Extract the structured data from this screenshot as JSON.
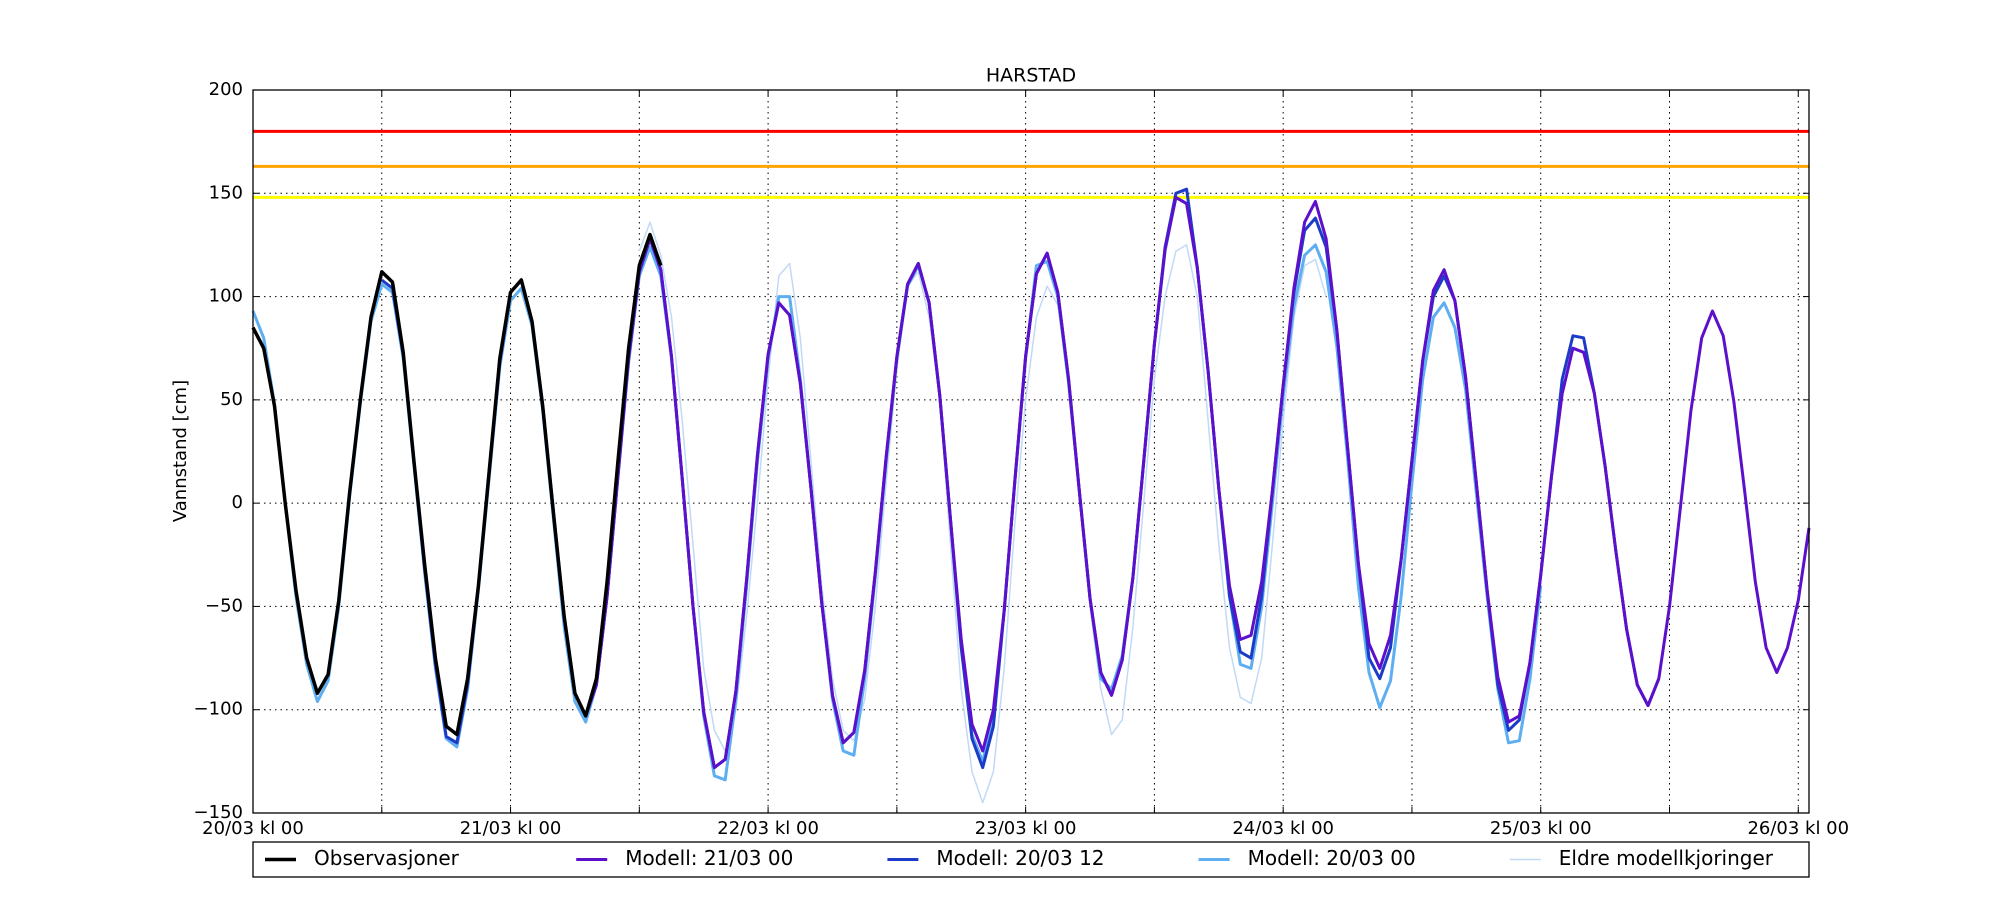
{
  "chart_data": {
    "type": "line",
    "title": "HARSTAD",
    "y_label": "Vannstand [cm]",
    "xlim": [
      0,
      145
    ],
    "ylim": [
      -150,
      200
    ],
    "xticks": [
      {
        "value": 0,
        "label": "20/03 kl 00"
      },
      {
        "value": 24,
        "label": "21/03 kl 00"
      },
      {
        "value": 48,
        "label": "22/03 kl 00"
      },
      {
        "value": 72,
        "label": "23/03 kl 00"
      },
      {
        "value": 96,
        "label": "24/03 kl 00"
      },
      {
        "value": 120,
        "label": "25/03 kl 00"
      },
      {
        "value": 144,
        "label": "26/03 kl 00"
      }
    ],
    "xminorticks": [
      12,
      36,
      60,
      84,
      108,
      132
    ],
    "yticks": [
      {
        "value": -150,
        "label": "−150"
      },
      {
        "value": -100,
        "label": "−100"
      },
      {
        "value": -50,
        "label": "−50"
      },
      0,
      50,
      100,
      150,
      200
    ],
    "grid": true,
    "legend": "bottom",
    "thresholds": [
      {
        "value": 180,
        "color": "#ff0000"
      },
      {
        "value": 163,
        "color": "#ffa500"
      },
      {
        "value": 148,
        "color": "#ffff00"
      }
    ],
    "x": [
      0,
      1,
      2,
      3,
      4,
      5,
      6,
      7,
      8,
      9,
      10,
      11,
      12,
      13,
      14,
      15,
      16,
      17,
      18,
      19,
      20,
      21,
      22,
      23,
      24,
      25,
      26,
      27,
      28,
      29,
      30,
      31,
      32,
      33,
      34,
      35,
      36,
      37,
      38,
      39,
      40,
      41,
      42,
      43,
      44,
      45,
      46,
      47,
      48,
      49,
      50,
      51,
      52,
      53,
      54,
      55,
      56,
      57,
      58,
      59,
      60,
      61,
      62,
      63,
      64,
      65,
      66,
      67,
      68,
      69,
      70,
      71,
      72,
      73,
      74,
      75,
      76,
      77,
      78,
      79,
      80,
      81,
      82,
      83,
      84,
      85,
      86,
      87,
      88,
      89,
      90,
      91,
      92,
      93,
      94,
      95,
      96,
      97,
      98,
      99,
      100,
      101,
      102,
      103,
      104,
      105,
      106,
      107,
      108,
      109,
      110,
      111,
      112,
      113,
      114,
      115,
      116,
      117,
      118,
      119,
      120,
      121,
      122,
      123,
      124,
      125,
      126,
      127,
      128,
      129,
      130,
      131,
      132,
      133,
      134,
      135,
      136,
      137,
      138,
      139,
      140,
      141,
      142,
      143,
      144,
      145
    ],
    "series": [
      {
        "name": "Observasjoner",
        "color": "#000000",
        "width": 3.5,
        "values": [
          85,
          75,
          47,
          0,
          -42,
          -75,
          -92,
          -83,
          -47,
          5,
          50,
          90,
          112,
          107,
          73,
          20,
          -30,
          -75,
          -108,
          -112,
          -85,
          -40,
          15,
          70,
          102,
          108,
          88,
          47,
          -5,
          -55,
          -92,
          -103,
          -85,
          -38,
          20,
          75,
          115,
          130,
          115,
          null,
          null,
          null,
          null,
          null,
          null,
          null,
          null,
          null,
          null,
          null,
          null,
          null,
          null,
          null,
          null,
          null,
          null,
          null,
          null,
          null,
          null,
          null,
          null,
          null,
          null,
          null,
          null,
          null,
          null,
          null,
          null,
          null,
          null,
          null,
          null,
          null,
          null,
          null,
          null,
          null,
          null,
          null,
          null,
          null,
          null,
          null,
          null,
          null,
          null,
          null,
          null,
          null,
          null,
          null,
          null,
          null,
          null,
          null,
          null,
          null,
          null,
          null,
          null,
          null,
          null,
          null,
          null,
          null,
          null,
          null,
          null,
          null,
          null,
          null,
          null,
          null,
          null,
          null,
          null,
          null,
          null,
          null,
          null,
          null,
          null,
          null,
          null,
          null,
          null,
          null,
          null,
          null,
          null,
          null,
          null,
          null,
          null,
          null,
          null,
          null,
          null,
          null,
          null,
          null,
          null,
          null
        ]
      },
      {
        "name": "Modell: 21/03 00",
        "color": "#5c10cc",
        "width": 3,
        "values": [
          null,
          null,
          null,
          null,
          null,
          null,
          null,
          null,
          null,
          null,
          null,
          null,
          null,
          null,
          null,
          null,
          null,
          null,
          null,
          null,
          null,
          null,
          null,
          null,
          102,
          108,
          88,
          47,
          -5,
          -55,
          -92,
          -103,
          -88,
          -45,
          13,
          70,
          112,
          128,
          113,
          71,
          12,
          -50,
          -101,
          -128,
          -124,
          -91,
          -37,
          23,
          72,
          97,
          91,
          58,
          7,
          -48,
          -93,
          -116,
          -111,
          -81,
          -33,
          22,
          71,
          106,
          116,
          97,
          52,
          -8,
          -66,
          -107,
          -120,
          -100,
          -52,
          11,
          71,
          111,
          121,
          102,
          60,
          6,
          -46,
          -82,
          -93,
          -76,
          -36,
          20,
          77,
          123,
          148,
          145,
          114,
          64,
          7,
          -40,
          -66,
          -64,
          -38,
          6,
          57,
          104,
          136,
          146,
          128,
          84,
          27,
          -29,
          -68,
          -80,
          -64,
          -27,
          21,
          69,
          103,
          113,
          98,
          61,
          10,
          -42,
          -84,
          -106,
          -103,
          -77,
          -35,
          13,
          53,
          75,
          73,
          53,
          18,
          -23,
          -61,
          -88,
          -98,
          -85,
          -50,
          -3,
          45,
          80,
          93,
          81,
          49,
          6,
          -38,
          -70,
          -82,
          -70,
          -47,
          -12
        ]
      },
      {
        "name": "Modell: 20/03 12",
        "color": "#1c3cc8",
        "width": 3,
        "values": [
          null,
          null,
          null,
          null,
          null,
          null,
          null,
          null,
          null,
          null,
          null,
          null,
          108,
          104,
          72,
          20,
          -32,
          -78,
          -113,
          -116,
          -88,
          -40,
          15,
          68,
          102,
          108,
          88,
          47,
          -5,
          -55,
          -92,
          -103,
          -88,
          -45,
          13,
          70,
          112,
          128,
          113,
          71,
          12,
          -50,
          -101,
          -128,
          -124,
          -91,
          -37,
          23,
          72,
          97,
          91,
          58,
          7,
          -48,
          -93,
          -116,
          -111,
          -81,
          -33,
          22,
          71,
          106,
          116,
          97,
          52,
          -8,
          -70,
          -114,
          -128,
          -108,
          -52,
          11,
          71,
          111,
          121,
          102,
          60,
          6,
          -46,
          -82,
          -93,
          -76,
          -36,
          20,
          77,
          124,
          150,
          152,
          114,
          64,
          7,
          -45,
          -72,
          -75,
          -45,
          6,
          57,
          102,
          132,
          138,
          124,
          84,
          27,
          -29,
          -75,
          -85,
          -70,
          -27,
          21,
          69,
          100,
          110,
          98,
          61,
          10,
          -42,
          -88,
          -110,
          -105,
          -77,
          -35,
          13,
          60,
          81,
          80,
          53,
          18,
          -23,
          -61,
          -88,
          -98,
          -85,
          null,
          null,
          null,
          null,
          null,
          null,
          null,
          null,
          null,
          null,
          null,
          null,
          null,
          null
        ]
      },
      {
        "name": "Modell: 20/03 00",
        "color": "#5eaef2",
        "width": 3,
        "values": [
          93,
          80,
          48,
          0,
          -45,
          -78,
          -96,
          -86,
          -50,
          3,
          48,
          88,
          106,
          102,
          70,
          18,
          -34,
          -80,
          -114,
          -118,
          -90,
          -42,
          12,
          66,
          98,
          104,
          86,
          45,
          -8,
          -60,
          -96,
          -106,
          -88,
          -45,
          12,
          68,
          110,
          124,
          110,
          70,
          12,
          -50,
          -103,
          -132,
          -134,
          -95,
          -40,
          20,
          70,
          100,
          100,
          60,
          7,
          -48,
          -95,
          -120,
          -122,
          -85,
          -35,
          20,
          70,
          105,
          115,
          97,
          52,
          -8,
          -66,
          -112,
          -125,
          -104,
          -52,
          11,
          70,
          115,
          117,
          100,
          58,
          6,
          -46,
          -85,
          -90,
          -74,
          -36,
          20,
          77,
          122,
          148,
          145,
          114,
          64,
          7,
          -45,
          -78,
          -80,
          -50,
          0,
          52,
          95,
          120,
          125,
          112,
          76,
          22,
          -40,
          -82,
          -99,
          -86,
          -45,
          10,
          60,
          90,
          97,
          85,
          55,
          5,
          -45,
          -90,
          -116,
          -115,
          -85,
          -40,
          null,
          null,
          null,
          null,
          null,
          null,
          null,
          null,
          null,
          null,
          null,
          null,
          null,
          null,
          null,
          null,
          null,
          null,
          null,
          null,
          null,
          null,
          null,
          null,
          null
        ]
      },
      {
        "name": "Eldre modellkjoringer",
        "color": "#c2d9f5",
        "width": 1.5,
        "values": [
          null,
          null,
          null,
          null,
          null,
          null,
          null,
          null,
          null,
          null,
          null,
          null,
          null,
          null,
          null,
          null,
          null,
          null,
          null,
          null,
          null,
          null,
          null,
          null,
          null,
          null,
          null,
          null,
          null,
          null,
          null,
          null,
          null,
          null,
          null,
          null,
          122,
          136,
          120,
          90,
          40,
          -20,
          -80,
          -110,
          -120,
          -100,
          -55,
          0,
          60,
          110,
          116,
          80,
          20,
          -40,
          -85,
          -110,
          -115,
          -95,
          -50,
          10,
          65,
          105,
          112,
          90,
          50,
          -20,
          -90,
          -130,
          -145,
          -130,
          -80,
          -10,
          50,
          90,
          105,
          96,
          60,
          5,
          -50,
          -90,
          -112,
          -105,
          -60,
          0,
          60,
          100,
          122,
          125,
          100,
          40,
          -20,
          -70,
          -94,
          -97,
          -75,
          -20,
          40,
          90,
          115,
          118,
          100,
          null,
          null,
          null,
          null,
          null,
          null,
          null,
          null,
          null,
          null,
          null,
          null,
          null,
          null,
          null,
          null,
          null,
          null,
          null,
          null,
          null,
          null,
          null,
          null,
          null,
          null,
          null,
          null,
          null,
          null,
          null,
          null,
          null,
          null,
          null,
          null,
          null,
          null,
          null,
          null,
          null,
          null,
          null,
          null,
          null
        ]
      }
    ]
  }
}
